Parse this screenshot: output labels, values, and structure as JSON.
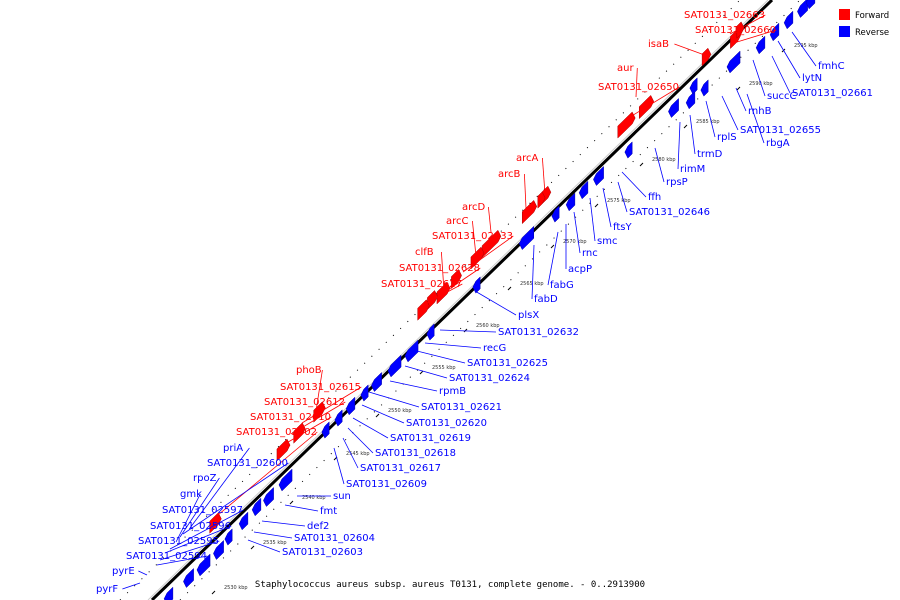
{
  "colors": {
    "forward": "#ff0000",
    "reverse": "#0000ff",
    "axis": "#000000"
  },
  "legend": [
    {
      "label": "Forward",
      "color": "#ff0000"
    },
    {
      "label": "Reverse",
      "color": "#0000ff"
    }
  ],
  "caption": "Staphylococcus aureus subsp. aureus T0131, complete genome. - 0..2913900",
  "ticks": [
    "2530 kbp",
    "2535 kbp",
    "2540 kbp",
    "2545 kbp",
    "2550 kbp",
    "2555 kbp",
    "2560 kbp",
    "2565 kbp",
    "2570 kbp",
    "2575 kbp",
    "2580 kbp",
    "2585 kbp",
    "2590 kbp",
    "2595 kbp"
  ],
  "forward_genes": [
    "SAT0131_02663",
    "SAT0131_02660",
    "isaB",
    "aur",
    "SAT0131_02650",
    "arcA",
    "arcB",
    "arcD",
    "arcC",
    "SAT0131_02633",
    "clfB",
    "SAT0131_02628",
    "SAT0131_02627",
    "phoB",
    "SAT0131_02615",
    "SAT0131_02612",
    "SAT0131_02610",
    "SAT0131_02602"
  ],
  "reverse_genes_left": [
    "priA",
    "SAT0131_02600",
    "rpoZ",
    "gmk",
    "SAT0131_02597",
    "SAT0131_02596",
    "SAT0131_02595",
    "SAT0131_02594",
    "pyrE",
    "pyrF"
  ],
  "reverse_genes_right": [
    "fmhC",
    "lytN",
    "succC",
    "SAT0131_02661",
    "rnhB",
    "SAT0131_02655",
    "rplS",
    "rbgA",
    "trmD",
    "rimM",
    "rpsP",
    "ffh",
    "SAT0131_02646",
    "ftsY",
    "smc",
    "rnc",
    "acpP",
    "fabG",
    "fabD",
    "plsX",
    "SAT0131_02632",
    "recG",
    "SAT0131_02625",
    "SAT0131_02624",
    "rpmB",
    "SAT0131_02621",
    "SAT0131_02620",
    "SAT0131_02619",
    "SAT0131_02618",
    "SAT0131_02617",
    "SAT0131_02609",
    "sun",
    "fmt",
    "def2",
    "SAT0131_02604",
    "SAT0131_02603"
  ]
}
